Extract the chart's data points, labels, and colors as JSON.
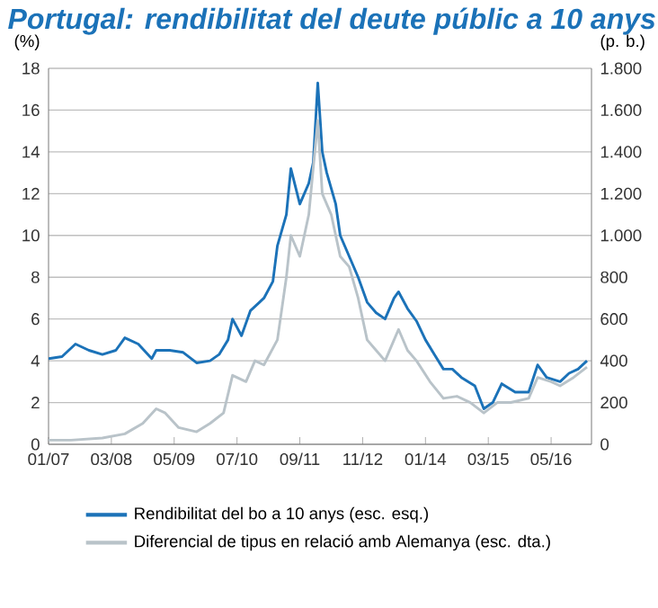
{
  "chart_data": {
    "type": "line",
    "title": "Portugal: rendibilitat del deute públic a 10 anys",
    "ylabel": "(%)",
    "y2label": "(p. b.)",
    "xlim": [
      "2007-01",
      "2017-02"
    ],
    "xticks": [
      {
        "value": "2007-01",
        "label": "01/07"
      },
      {
        "value": "2008-03",
        "label": "03/08"
      },
      {
        "value": "2009-05",
        "label": "05/09"
      },
      {
        "value": "2010-07",
        "label": "07/10"
      },
      {
        "value": "2011-09",
        "label": "09/11"
      },
      {
        "value": "2012-11",
        "label": "11/12"
      },
      {
        "value": "2014-01",
        "label": "01/14"
      },
      {
        "value": "2015-03",
        "label": "03/15"
      },
      {
        "value": "2016-05",
        "label": "05/16"
      }
    ],
    "ylim": [
      0,
      18
    ],
    "yticks": [
      0,
      2,
      4,
      6,
      8,
      10,
      12,
      14,
      16,
      18
    ],
    "y2lim": [
      0,
      1800
    ],
    "y2ticks": [
      0,
      {
        "value": 200,
        "label": "200"
      },
      {
        "value": 400,
        "label": "400"
      },
      {
        "value": 600,
        "label": "600"
      },
      {
        "value": 800,
        "label": "800"
      },
      {
        "value": 1000,
        "label": "1.000"
      },
      {
        "value": 1200,
        "label": "1.200"
      },
      {
        "value": 1400,
        "label": "1.400"
      },
      {
        "value": 1600,
        "label": "1.600"
      },
      {
        "value": 1800,
        "label": "1.800"
      }
    ],
    "grid": "y",
    "legend": "bottom",
    "series": [
      {
        "name": "Rendibilitat del bo a 10 anys (esc. esq.)",
        "color": "#1b72b8",
        "x": [
          "2007-01",
          "2007-04",
          "2007-07",
          "2007-10",
          "2008-01",
          "2008-04",
          "2008-06",
          "2008-09",
          "2008-12",
          "2009-01",
          "2009-04",
          "2009-07",
          "2009-10",
          "2010-01",
          "2010-03",
          "2010-05",
          "2010-06",
          "2010-08",
          "2010-10",
          "2010-12",
          "2011-01",
          "2011-03",
          "2011-04",
          "2011-06",
          "2011-07",
          "2011-09",
          "2011-11",
          "2011-12",
          "2012-01",
          "2012-02",
          "2012-03",
          "2012-05",
          "2012-06",
          "2012-08",
          "2012-10",
          "2012-12",
          "2013-02",
          "2013-04",
          "2013-06",
          "2013-07",
          "2013-09",
          "2013-11",
          "2014-01",
          "2014-03",
          "2014-05",
          "2014-07",
          "2014-09",
          "2014-12",
          "2015-02",
          "2015-04",
          "2015-06",
          "2015-09",
          "2015-12",
          "2016-02",
          "2016-04",
          "2016-07",
          "2016-09",
          "2016-11",
          "2017-01"
        ],
        "values": [
          4.1,
          4.2,
          4.8,
          4.5,
          4.3,
          4.5,
          5.1,
          4.8,
          4.1,
          4.5,
          4.5,
          4.4,
          3.9,
          4.0,
          4.3,
          5.0,
          6.0,
          5.2,
          6.4,
          6.8,
          7.0,
          7.8,
          9.5,
          11,
          13.2,
          11.5,
          12.5,
          13.5,
          17.3,
          14,
          13,
          11.5,
          10,
          9,
          8,
          6.8,
          6.3,
          6.0,
          7.0,
          7.3,
          6.5,
          5.9,
          5.0,
          4.3,
          3.6,
          3.6,
          3.2,
          2.8,
          1.7,
          2.0,
          2.9,
          2.5,
          2.5,
          3.8,
          3.2,
          3.0,
          3.4,
          3.6,
          4.0
        ]
      },
      {
        "name": "Diferencial de tipus en relació amb Alemanya (esc. dta.)",
        "color": "#b9c3c9",
        "axis": "y2",
        "x": [
          "2007-01",
          "2007-06",
          "2008-01",
          "2008-06",
          "2008-10",
          "2009-01",
          "2009-03",
          "2009-06",
          "2009-10",
          "2010-01",
          "2010-04",
          "2010-06",
          "2010-09",
          "2010-11",
          "2011-01",
          "2011-04",
          "2011-06",
          "2011-07",
          "2011-09",
          "2011-11",
          "2012-01",
          "2012-02",
          "2012-04",
          "2012-06",
          "2012-08",
          "2012-10",
          "2012-12",
          "2013-02",
          "2013-04",
          "2013-06",
          "2013-07",
          "2013-09",
          "2013-11",
          "2014-02",
          "2014-05",
          "2014-08",
          "2014-11",
          "2015-02",
          "2015-05",
          "2015-08",
          "2015-12",
          "2016-02",
          "2016-05",
          "2016-07",
          "2016-10",
          "2017-01"
        ],
        "values": [
          20,
          20,
          30,
          50,
          100,
          170,
          150,
          80,
          60,
          100,
          150,
          330,
          300,
          400,
          380,
          500,
          800,
          1000,
          900,
          1100,
          1550,
          1200,
          1100,
          900,
          850,
          700,
          500,
          450,
          400,
          500,
          550,
          450,
          400,
          300,
          220,
          230,
          200,
          150,
          200,
          200,
          220,
          320,
          300,
          280,
          320,
          370
        ]
      }
    ]
  }
}
